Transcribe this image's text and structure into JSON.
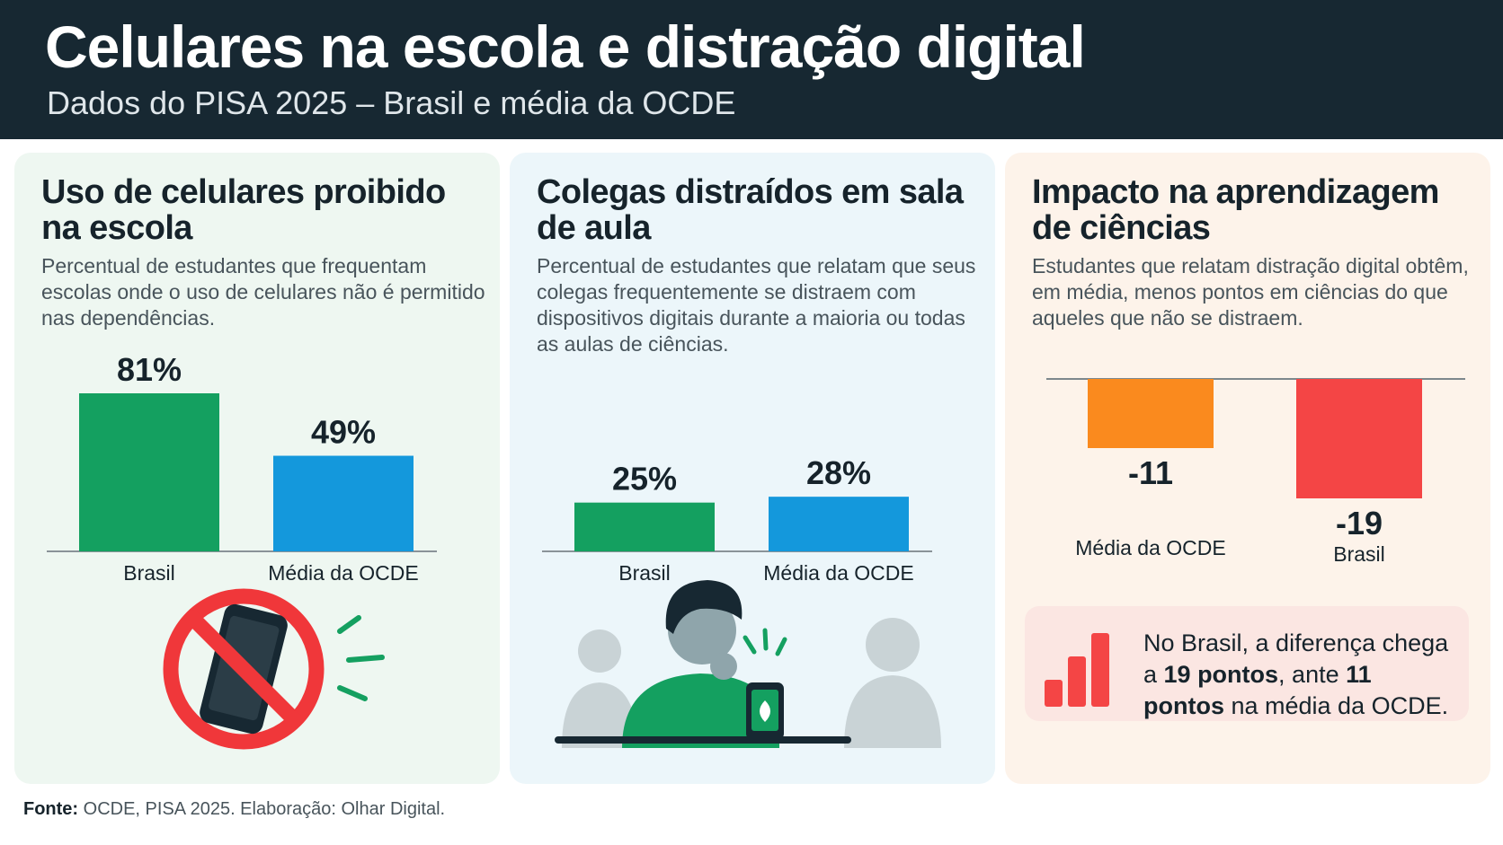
{
  "header": {
    "title": "Celulares na escola e distração digital",
    "subtitle": "Dados do PISA 2025 – Brasil e média da OCDE"
  },
  "colors": {
    "header_bg": "#172832",
    "brasil_green": "#14a060",
    "ocde_blue": "#1498dc",
    "ocde_orange": "#fa8a1e",
    "brasil_red": "#f44545",
    "prohibited_red": "#f0373a"
  },
  "panels": [
    {
      "title": "Uso de celulares proibido na escola",
      "description": "Percentual de estudantes que frequentam escolas onde o uso de celulares não é permitido nas dependências.",
      "icon": "no-phone-icon"
    },
    {
      "title": "Colegas distraídos em sala de aula",
      "description": "Percentual de estudantes que relatam que seus colegas frequentemente se distraem com dispositivos digitais durante a maioria ou todas as aulas de ciências.",
      "icon": "distracted-student-icon"
    },
    {
      "title": "Impacto na aprendizagem de ciências",
      "description": "Estudantes que relatam distração digital obtêm, em média, menos pontos em ciências do que aqueles que não se distraem.",
      "icon": "bar-chart-icon",
      "callout": {
        "part1": "No Brasil, a diferença chega a ",
        "bold1": "19 pontos",
        "part2": ", ante ",
        "bold2": "11 pontos",
        "part3": " na média da OCDE."
      }
    }
  ],
  "chart_data": [
    {
      "type": "bar",
      "categories": [
        "Brasil",
        "Média da OCDE"
      ],
      "values": [
        81,
        49
      ],
      "value_labels": [
        "81%",
        "49%"
      ],
      "ylim": [
        0,
        100
      ]
    },
    {
      "type": "bar",
      "categories": [
        "Brasil",
        "Média da OCDE"
      ],
      "values": [
        25,
        28
      ],
      "value_labels": [
        "25%",
        "28%"
      ],
      "ylim": [
        0,
        100
      ]
    },
    {
      "type": "bar",
      "categories": [
        "Média da OCDE",
        "Brasil"
      ],
      "values": [
        -11,
        -19
      ],
      "value_labels": [
        "-11",
        "-19"
      ],
      "ylim": [
        -25,
        0
      ]
    }
  ],
  "footer": {
    "label": "Fonte:",
    "text": " OCDE, PISA 2025. Elaboração: Olhar Digital."
  }
}
